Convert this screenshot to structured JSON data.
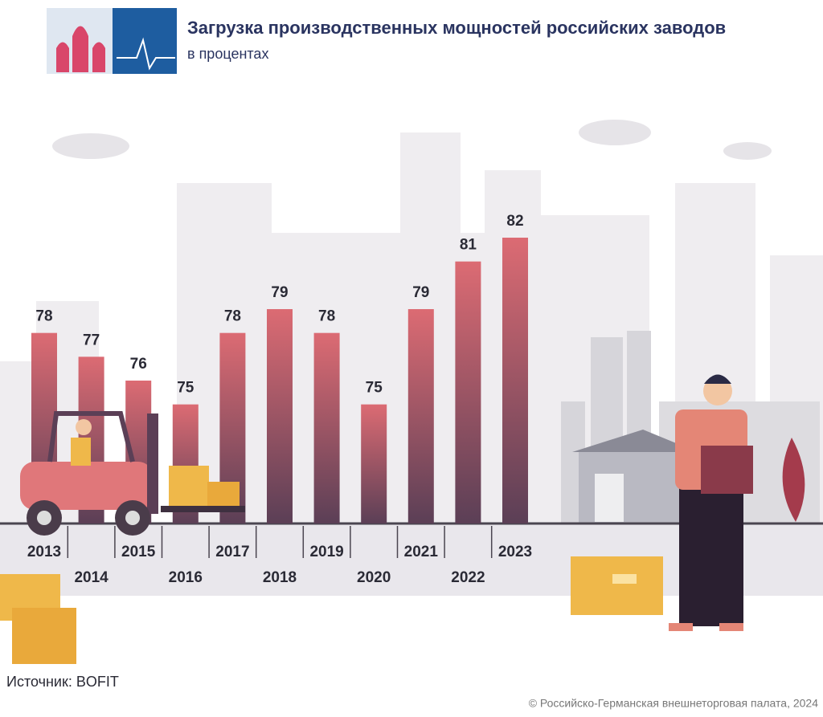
{
  "chart_data": {
    "type": "bar",
    "title": "Загрузка производственных мощностей российских заводов",
    "subtitle": "в процентах",
    "categories": [
      "2013",
      "2014",
      "2015",
      "2016",
      "2017",
      "2018",
      "2019",
      "2020",
      "2021",
      "2022",
      "2023"
    ],
    "values": [
      78,
      77,
      76,
      75,
      78,
      79,
      78,
      75,
      79,
      81,
      82
    ],
    "color": "#dc6b73",
    "ylim": [
      70,
      82
    ],
    "source": "Источник: BOFIT",
    "copyright": "© Российско-Германская внешнеторговая палата, 2024"
  }
}
